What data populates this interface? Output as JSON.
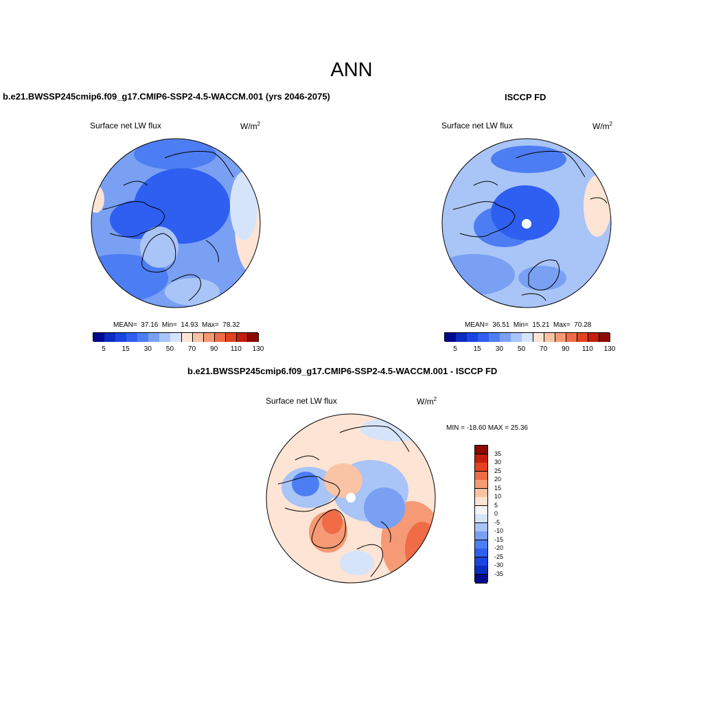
{
  "figure": {
    "title": "ANN",
    "panels": [
      {
        "id": "model",
        "title": "b.e21.BWSSP245cmip6.f09_g17.CMIP6-SSP2-4.5-WACCM.001 (yrs 2046-2075)",
        "variable": "Surface net LW flux",
        "units_base": "W/m",
        "units_exp": "2",
        "stats": {
          "mean_label": "MEAN=",
          "mean": "37.16",
          "min_label": "Min=",
          "min": "14.93",
          "max_label": "Max=",
          "max": "78.32"
        }
      },
      {
        "id": "obs",
        "title": "ISCCP FD",
        "variable": "Surface net LW flux",
        "units_base": "W/m",
        "units_exp": "2",
        "stats": {
          "mean_label": "MEAN=",
          "mean": "36.51",
          "min_label": "Min=",
          "min": "15.21",
          "max_label": "Max=",
          "max": "70.28"
        }
      },
      {
        "id": "diff",
        "title": "b.e21.BWSSP245cmip6.f09_g17.CMIP6-SSP2-4.5-WACCM.001 - ISCCP FD",
        "variable": "Surface net LW flux",
        "units_base": "W/m",
        "units_exp": "2",
        "minmax_text": "MIN = -18.60 MAX =  25.36"
      }
    ],
    "colorbar_abs": {
      "colors": [
        "#000a8c",
        "#0a2cc0",
        "#1a45e0",
        "#2e5ff0",
        "#4d7df2",
        "#7aa0f4",
        "#a9c4f7",
        "#d6e4fa",
        "#fde4d4",
        "#f9c3a6",
        "#f59a74",
        "#ef6c46",
        "#e3421f",
        "#c21f0c",
        "#8c0a00"
      ],
      "labels": [
        "5",
        "15",
        "30",
        "50",
        "70",
        "90",
        "110",
        "130"
      ]
    },
    "colorbar_diff": {
      "colors": [
        "#000a8c",
        "#0a2cc0",
        "#1a45e0",
        "#2e5ff0",
        "#4d7df2",
        "#7aa0f4",
        "#a9c4f7",
        "#d6e4fa",
        "#f4f4f4",
        "#fde4d4",
        "#f9c3a6",
        "#f59a74",
        "#ef6c46",
        "#e3421f",
        "#c21f0c",
        "#8c0a00"
      ],
      "labels": [
        "35",
        "30",
        "25",
        "20",
        "15",
        "10",
        "5",
        "0",
        "-5",
        "-10",
        "-15",
        "-20",
        "-25",
        "-30",
        "-35"
      ]
    },
    "map_colors": {
      "deep_blue": "#2e5ff0",
      "mid_blue": "#4d7df2",
      "light_blue": "#7aa0f4",
      "pale_blue": "#a9c4f7",
      "paler_blue": "#d6e4fa",
      "peach": "#fde4d4",
      "light_orange": "#f9c3a6",
      "orange": "#f59a74",
      "red_orange": "#ef6c46"
    }
  }
}
